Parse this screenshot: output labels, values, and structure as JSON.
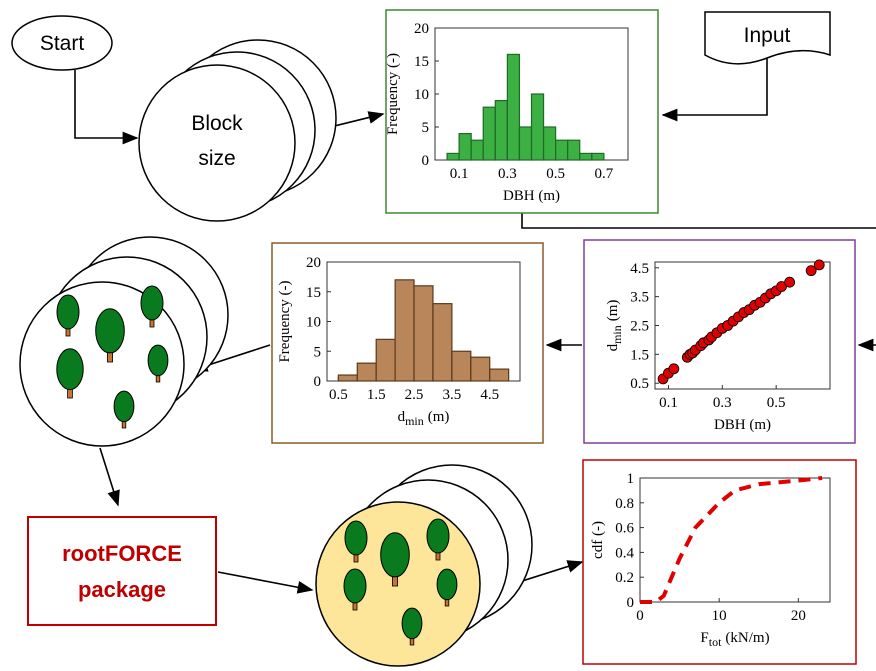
{
  "nodes": {
    "start": "Start",
    "block_size": [
      "Block",
      "size"
    ],
    "input": "Input",
    "package": [
      "rootFORCE",
      "package"
    ]
  },
  "charts": [
    {
      "type": "histogram",
      "xlabel": "DBH (m)",
      "ylabel": "Frequency (-)",
      "color": "#3cb043",
      "edge": "#1e6b23",
      "bins": [
        0.05,
        0.1,
        0.15,
        0.2,
        0.25,
        0.3,
        0.35,
        0.4,
        0.45,
        0.5,
        0.55,
        0.6,
        0.65,
        0.7,
        0.75
      ],
      "counts": [
        1,
        4,
        3,
        8,
        9,
        16,
        5,
        10,
        5,
        3,
        3,
        1,
        1,
        0
      ],
      "xlim": [
        0,
        0.8
      ],
      "xticks": [
        0.1,
        0.3,
        0.5,
        0.7
      ],
      "ylim": [
        0,
        20
      ],
      "yticks": [
        0,
        5,
        10,
        15,
        20
      ]
    },
    {
      "type": "histogram",
      "xlabel": {
        "main": "d",
        "sub": "min",
        "unit": "(m)"
      },
      "ylabel": "Frequency (-)",
      "color": "#b8865a",
      "edge": "#5a3a1a",
      "bins": [
        0.5,
        1,
        1.5,
        2,
        2.5,
        3,
        3.5,
        4,
        4.5,
        5
      ],
      "counts": [
        1,
        3,
        7,
        17,
        16,
        13,
        5,
        4,
        2
      ],
      "xlim": [
        0.2,
        5.3
      ],
      "xticks": [
        0.5,
        1.5,
        2.5,
        3.5,
        4.5
      ],
      "ylim": [
        0,
        20
      ],
      "yticks": [
        0,
        5,
        10,
        15,
        20
      ]
    },
    {
      "type": "scatter",
      "xlabel": "DBH (m)",
      "ylabel": {
        "main": "d",
        "sub": "min",
        "unit": "(m)"
      },
      "color": "#e00000",
      "x": [
        0.08,
        0.1,
        0.12,
        0.17,
        0.18,
        0.19,
        0.2,
        0.22,
        0.23,
        0.25,
        0.26,
        0.28,
        0.3,
        0.32,
        0.34,
        0.36,
        0.38,
        0.4,
        0.42,
        0.44,
        0.46,
        0.48,
        0.5,
        0.52,
        0.55,
        0.63,
        0.66
      ],
      "y": [
        0.65,
        0.85,
        1.0,
        1.4,
        1.5,
        1.55,
        1.65,
        1.8,
        1.9,
        2.0,
        2.1,
        2.25,
        2.4,
        2.5,
        2.65,
        2.8,
        2.95,
        3.05,
        3.2,
        3.3,
        3.45,
        3.6,
        3.7,
        3.85,
        4.0,
        4.4,
        4.6
      ],
      "xlim": [
        0.05,
        0.7
      ],
      "xticks": [
        0.1,
        0.3,
        0.5
      ],
      "ylim": [
        0.3,
        4.7
      ],
      "yticks": [
        0.5,
        1.5,
        2.5,
        3.5,
        4.5
      ]
    },
    {
      "type": "line",
      "xlabel": {
        "main": "F",
        "sub": "tot",
        "unit": "(kN/m)"
      },
      "ylabel": "cdf (-)",
      "color": "#e00000",
      "x": [
        0,
        2,
        3,
        5,
        7,
        10,
        12,
        15,
        20,
        23
      ],
      "y": [
        0,
        0,
        0.05,
        0.35,
        0.6,
        0.8,
        0.9,
        0.95,
        0.98,
        1
      ],
      "xlim": [
        0,
        24
      ],
      "xticks": [
        0,
        10,
        20
      ],
      "ylim": [
        0,
        1
      ],
      "yticks": [
        0,
        0.2,
        0.4,
        0.6,
        0.8,
        1
      ]
    }
  ]
}
